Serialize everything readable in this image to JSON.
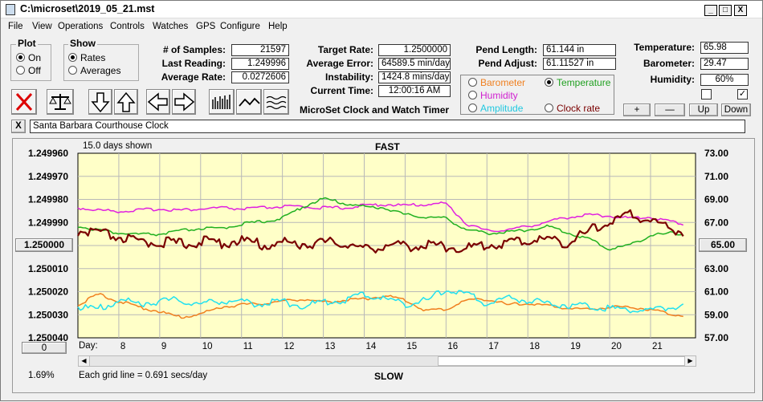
{
  "window": {
    "title": "C:\\microset\\2019_05_21.mst",
    "min": "_",
    "max": "□",
    "close": "X"
  },
  "menu": [
    "File",
    "View",
    "Operations",
    "Controls",
    "Watches",
    "GPS",
    "Configure",
    "Help"
  ],
  "plot_group": {
    "title": "Plot",
    "on": "On",
    "off": "Off"
  },
  "show_group": {
    "title": "Show",
    "rates": "Rates",
    "averages": "Averages"
  },
  "stats": {
    "samples_label": "# of Samples:",
    "samples": "21597",
    "last_label": "Last Reading:",
    "last": "1.249996",
    "avg_label": "Average Rate:",
    "avg": "0.0272606",
    "target_label": "Target Rate:",
    "target": "1.2500000",
    "err_label": "Average Error:",
    "err": "64589.5 min/day",
    "inst_label": "Instability:",
    "inst": "1424.8 mins/day",
    "time_label": "Current Time:",
    "time": "12:00:16 AM",
    "pendlen_label": "Pend Length:",
    "pendlen": "61.144 in",
    "pendadj_label": "Pend Adjust:",
    "pendadj": "61.11527 in",
    "temp_label": "Temperature:",
    "temp": "65.98",
    "baro_label": "Barometer:",
    "baro": "29.47",
    "hum_label": "Humidity:",
    "hum": "60%"
  },
  "app_caption": "MicroSet Clock and Watch Timer",
  "series_select": {
    "barometer": "Barometer",
    "temperature": "Temperature",
    "humidity": "Humidity",
    "amplitude": "Amplitude",
    "clockrate": "Clock rate"
  },
  "adjust_buttons": {
    "plus": "+",
    "minus": "—",
    "up": "Up",
    "down": "Down"
  },
  "check2_mark": "✓",
  "watch": {
    "close": "X",
    "name": "Santa Barbara Courthouse Clock"
  },
  "plot": {
    "days_shown": "15.0 days shown",
    "fast": "FAST",
    "slow": "SLOW",
    "center_left": "1.250000",
    "center_right": "65.00",
    "zero_btn": "0",
    "day_prefix": "Day:",
    "percent": "1.69%",
    "grid_note": "Each grid line = 0.691 secs/day"
  },
  "chart_data": {
    "type": "line",
    "x": [
      7.0,
      7.5,
      8,
      8.5,
      9,
      9.5,
      10,
      10.5,
      11,
      11.5,
      12,
      12.5,
      13,
      13.5,
      14,
      14.5,
      15,
      15.5,
      16,
      16.5,
      17,
      17.5,
      18,
      18.5,
      19,
      19.5,
      20,
      20.5,
      21,
      21.5,
      21.8
    ],
    "x_ticks": [
      "8",
      "9",
      "10",
      "11",
      "12",
      "13",
      "14",
      "15",
      "16",
      "17",
      "18",
      "19",
      "20",
      "21"
    ],
    "y_left_ticks": [
      "1.249960",
      "1.249970",
      "1.249980",
      "1.249990",
      "1.250000",
      "1.250010",
      "1.250020",
      "1.250030",
      "1.250040"
    ],
    "y_right_ticks": [
      "73.00",
      "71.00",
      "69.00",
      "67.00",
      "65.00",
      "63.00",
      "61.00",
      "59.00",
      "57.00"
    ],
    "series": [
      {
        "name": "Humidity",
        "color": "#e020e0",
        "axis": "right",
        "values": [
          68.2,
          68.0,
          67.9,
          68.0,
          68.1,
          68.0,
          68.1,
          68.2,
          68.1,
          68.2,
          68.3,
          68.3,
          68.2,
          68.2,
          68.4,
          68.5,
          68.4,
          68.5,
          68.6,
          66.8,
          66.2,
          66.3,
          66.6,
          67.0,
          67.4,
          67.6,
          67.5,
          67.3,
          67.4,
          67.0,
          66.8
        ]
      },
      {
        "name": "Temperature",
        "color": "#20b020",
        "axis": "right",
        "values": [
          66.6,
          66.3,
          66.0,
          65.9,
          65.9,
          66.2,
          66.4,
          66.4,
          66.8,
          67.0,
          67.3,
          68.3,
          69.0,
          68.6,
          68.3,
          68.2,
          67.6,
          67.4,
          67.3,
          66.3,
          66.0,
          66.1,
          66.3,
          66.6,
          66.0,
          65.5,
          64.6,
          65.0,
          65.8,
          66.0,
          65.9
        ]
      },
      {
        "name": "Clock rate",
        "color": "#7a0000",
        "axis": "left",
        "values": [
          1.249995,
          1.249996,
          1.2499975,
          1.25,
          1.2499995,
          1.2500005,
          1.2499995,
          1.25,
          1.249999,
          1.250001,
          1.25,
          1.2500005,
          1.25,
          1.25,
          1.250003,
          1.250001,
          1.2500015,
          1.250001,
          1.2500015,
          1.2500025,
          1.250001,
          1.25,
          1.249999,
          1.2499985,
          1.25,
          1.249995,
          1.249991,
          1.249988,
          1.24999,
          1.249994,
          1.249995
        ]
      },
      {
        "name": "Barometer",
        "color": "#f08020",
        "axis": "right",
        "values": [
          59.8,
          60.7,
          60.1,
          59.6,
          59.2,
          58.7,
          59.0,
          59.6,
          59.8,
          59.9,
          60.1,
          60.3,
          60.0,
          60.2,
          60.3,
          60.6,
          60.2,
          59.3,
          59.4,
          60.2,
          60.3,
          59.8,
          59.9,
          59.7,
          59.5,
          59.4,
          59.6,
          59.6,
          59.4,
          59.0,
          58.9
        ]
      },
      {
        "name": "Amplitude",
        "color": "#20e0f0",
        "axis": "right",
        "values": [
          59.5,
          59.3,
          60.1,
          59.8,
          60.0,
          60.1,
          59.7,
          60.1,
          59.9,
          59.8,
          60.0,
          59.6,
          59.9,
          60.1,
          60.6,
          60.2,
          59.8,
          60.0,
          61.0,
          60.6,
          59.8,
          60.3,
          60.1,
          59.8,
          59.7,
          59.6,
          59.4,
          59.3,
          59.2,
          59.5,
          59.7
        ]
      }
    ]
  }
}
